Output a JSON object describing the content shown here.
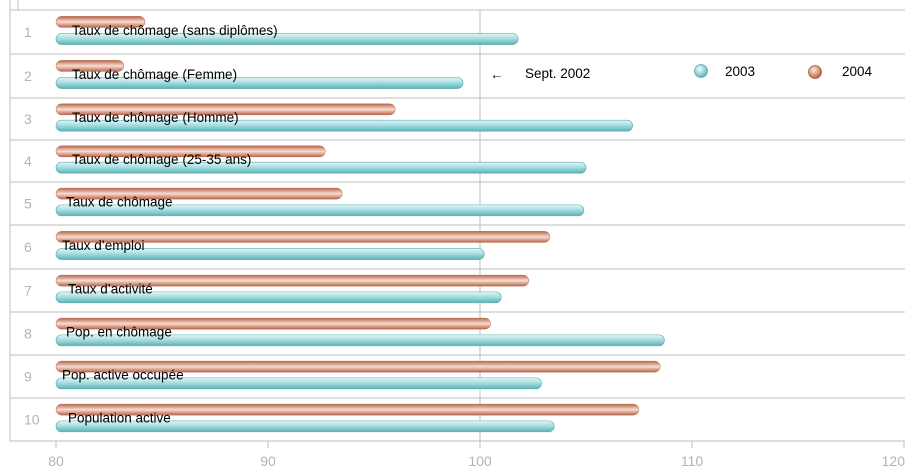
{
  "chart_data": {
    "type": "bar",
    "orientation": "horizontal",
    "categories": [
      "Taux de chômage (sans diplômes)",
      "Taux  de chômage (Femme)",
      "Taux  de chômage (Homme)",
      "Taux  de chômage (25-35 ans)",
      "Taux de chômage",
      "Taux d’emploi",
      "Taux d’activité",
      "Pop. en chômage",
      "Pop. active occupée",
      "Population active"
    ],
    "row_numbers": [
      "1",
      "2",
      "3",
      "4",
      "5",
      "6",
      "7",
      "8",
      "9",
      "10"
    ],
    "series": [
      {
        "name": "2003",
        "color": "#7ec8cc",
        "values": [
          101.8,
          99.2,
          107.2,
          105.0,
          104.9,
          100.2,
          101.0,
          108.7,
          102.9,
          103.5
        ]
      },
      {
        "name": "2004",
        "color": "#c8846a",
        "values": [
          84.2,
          83.2,
          96.0,
          92.7,
          93.5,
          103.3,
          102.3,
          100.5,
          108.5,
          107.5
        ]
      }
    ],
    "xlim": [
      80,
      120
    ],
    "xticks": [
      "80",
      "90",
      "100",
      "110",
      "120"
    ],
    "reference_line": {
      "value": 100,
      "label": "Sept. 2002",
      "arrow": "←"
    },
    "legend_position": "top-right",
    "title": "",
    "xlabel": "",
    "ylabel": "",
    "grid": true
  }
}
